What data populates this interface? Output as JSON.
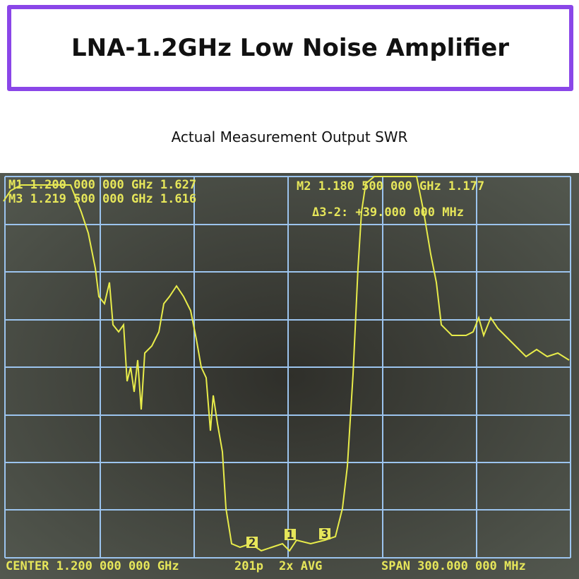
{
  "header": {
    "title": "LNA-1.2GHz Low Noise Amplifier",
    "subtitle": "Actual Measurement Output SWR"
  },
  "screen": {
    "marker_readouts": [
      "M1 1.200 000 000 GHz 1.627",
      "M3 1.219 500 000 GHz 1.616",
      "M2 1.180 500 000 GHz 1.177",
      "Δ3-2: +39.000 000 MHz"
    ],
    "marker_flags": [
      "2",
      "1",
      "3"
    ],
    "footer": {
      "center": "CENTER 1.200 000 000 GHz",
      "points": "201p",
      "averaging": "2x AVG",
      "span": "SPAN 300.000 000 MHz"
    }
  }
}
